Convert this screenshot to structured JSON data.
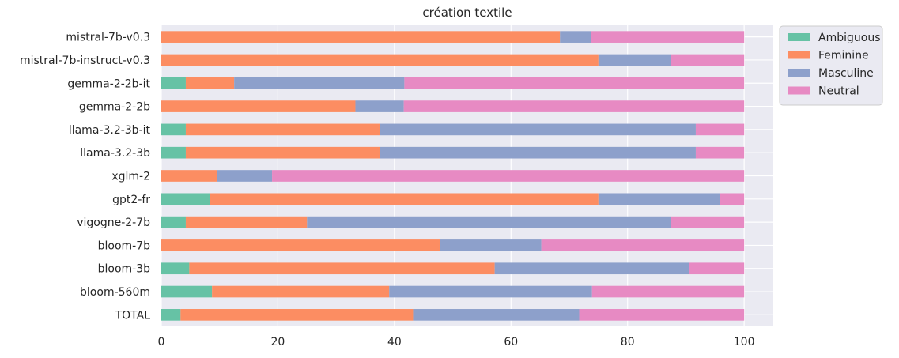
{
  "chart_data": {
    "type": "bar",
    "orientation": "horizontal",
    "stacked": true,
    "title": "création textile",
    "xlabel": "",
    "ylabel": "",
    "xlim": [
      0,
      105
    ],
    "xticks": [
      0,
      20,
      40,
      60,
      80,
      100
    ],
    "grid": true,
    "legend_position": "top-right",
    "categories": [
      "mistral-7b-v0.3",
      "mistral-7b-instruct-v0.3",
      "gemma-2-2b-it",
      "gemma-2-2b",
      "llama-3.2-3b-it",
      "llama-3.2-3b",
      "xglm-2",
      "gpt2-fr",
      "vigogne-2-7b",
      "bloom-7b",
      "bloom-3b",
      "bloom-560m",
      "TOTAL"
    ],
    "series": [
      {
        "name": "Ambiguous",
        "color": "#66c2a5",
        "values": [
          0,
          0,
          4.2,
          0,
          4.2,
          4.2,
          0,
          8.3,
          4.2,
          0,
          4.8,
          8.7,
          3.3
        ]
      },
      {
        "name": "Feminine",
        "color": "#fc8d62",
        "values": [
          68.4,
          75.0,
          8.3,
          33.3,
          33.3,
          33.3,
          9.5,
          66.7,
          20.8,
          47.8,
          52.4,
          30.4,
          39.9
        ]
      },
      {
        "name": "Masculine",
        "color": "#8da0cb",
        "values": [
          5.3,
          12.5,
          29.2,
          8.3,
          54.2,
          54.2,
          9.5,
          20.8,
          62.5,
          17.4,
          33.3,
          34.8,
          28.5
        ]
      },
      {
        "name": "Neutral",
        "color": "#e78ac3",
        "values": [
          26.3,
          12.5,
          58.3,
          58.4,
          8.3,
          8.3,
          81.0,
          4.2,
          12.5,
          34.8,
          9.5,
          26.1,
          28.3
        ]
      }
    ]
  }
}
